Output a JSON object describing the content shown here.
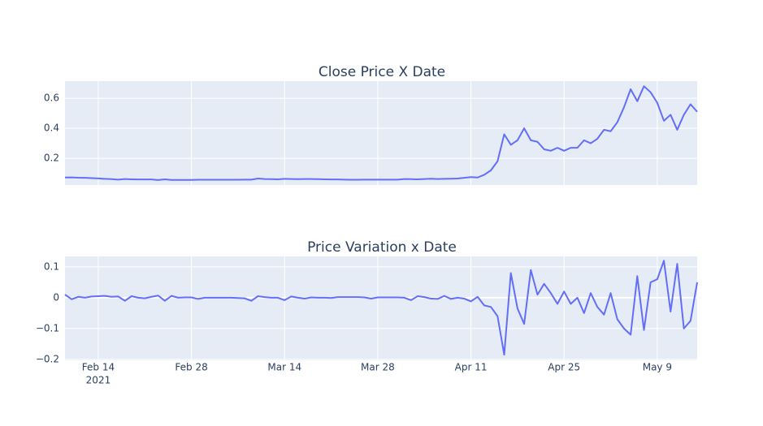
{
  "chart_data": [
    {
      "type": "line",
      "title": "Close Price X Date",
      "color": "#636efa",
      "grid": true,
      "xlim": [
        "2021-02-09",
        "2021-05-15"
      ],
      "xticks": [
        "2021-02-14",
        "2021-02-28",
        "2021-03-14",
        "2021-03-28",
        "2021-04-11",
        "2021-04-25",
        "2021-05-09"
      ],
      "ylim": [
        0.022,
        0.714
      ],
      "yticks": [
        0.2,
        0.4,
        0.6
      ],
      "x": [
        "2021-02-09",
        "2021-02-10",
        "2021-02-11",
        "2021-02-12",
        "2021-02-13",
        "2021-02-14",
        "2021-02-15",
        "2021-02-16",
        "2021-02-17",
        "2021-02-18",
        "2021-02-19",
        "2021-02-20",
        "2021-02-21",
        "2021-02-22",
        "2021-02-23",
        "2021-02-24",
        "2021-02-25",
        "2021-02-26",
        "2021-02-27",
        "2021-02-28",
        "2021-03-01",
        "2021-03-02",
        "2021-03-03",
        "2021-03-04",
        "2021-03-05",
        "2021-03-06",
        "2021-03-07",
        "2021-03-08",
        "2021-03-09",
        "2021-03-10",
        "2021-03-11",
        "2021-03-12",
        "2021-03-13",
        "2021-03-14",
        "2021-03-15",
        "2021-03-16",
        "2021-03-17",
        "2021-03-18",
        "2021-03-19",
        "2021-03-20",
        "2021-03-21",
        "2021-03-22",
        "2021-03-23",
        "2021-03-24",
        "2021-03-25",
        "2021-03-26",
        "2021-03-27",
        "2021-03-28",
        "2021-03-29",
        "2021-03-30",
        "2021-03-31",
        "2021-04-01",
        "2021-04-02",
        "2021-04-03",
        "2021-04-04",
        "2021-04-05",
        "2021-04-06",
        "2021-04-07",
        "2021-04-08",
        "2021-04-09",
        "2021-04-10",
        "2021-04-11",
        "2021-04-12",
        "2021-04-13",
        "2021-04-14",
        "2021-04-15",
        "2021-04-16",
        "2021-04-17",
        "2021-04-18",
        "2021-04-19",
        "2021-04-20",
        "2021-04-21",
        "2021-04-22",
        "2021-04-23",
        "2021-04-24",
        "2021-04-25",
        "2021-04-26",
        "2021-04-27",
        "2021-04-28",
        "2021-04-29",
        "2021-04-30",
        "2021-05-01",
        "2021-05-02",
        "2021-05-03",
        "2021-05-04",
        "2021-05-05",
        "2021-05-06",
        "2021-05-07",
        "2021-05-08",
        "2021-05-09",
        "2021-05-10",
        "2021-05-11",
        "2021-05-12",
        "2021-05-13",
        "2021-05-14",
        "2021-05-15"
      ],
      "values": [
        0.072,
        0.073,
        0.071,
        0.07,
        0.068,
        0.066,
        0.063,
        0.061,
        0.058,
        0.062,
        0.06,
        0.059,
        0.059,
        0.059,
        0.055,
        0.06,
        0.056,
        0.056,
        0.056,
        0.056,
        0.057,
        0.057,
        0.057,
        0.057,
        0.057,
        0.057,
        0.057,
        0.058,
        0.058,
        0.065,
        0.062,
        0.061,
        0.06,
        0.063,
        0.062,
        0.061,
        0.062,
        0.062,
        0.061,
        0.06,
        0.059,
        0.059,
        0.058,
        0.057,
        0.057,
        0.058,
        0.058,
        0.058,
        0.058,
        0.058,
        0.058,
        0.062,
        0.061,
        0.06,
        0.062,
        0.064,
        0.062,
        0.063,
        0.064,
        0.065,
        0.07,
        0.075,
        0.072,
        0.09,
        0.12,
        0.18,
        0.36,
        0.29,
        0.32,
        0.4,
        0.32,
        0.31,
        0.26,
        0.25,
        0.27,
        0.25,
        0.27,
        0.27,
        0.32,
        0.3,
        0.33,
        0.39,
        0.38,
        0.44,
        0.54,
        0.66,
        0.58,
        0.68,
        0.64,
        0.57,
        0.45,
        0.49,
        0.39,
        0.49,
        0.56,
        0.51
      ]
    },
    {
      "type": "line",
      "title": "Price Variation x Date",
      "color": "#636efa",
      "grid": true,
      "xlim": [
        "2021-02-09",
        "2021-05-15"
      ],
      "xticks": [
        {
          "value": "2021-02-14",
          "label": "Feb 14",
          "sublabel": "2021"
        },
        {
          "value": "2021-02-28",
          "label": "Feb 28"
        },
        {
          "value": "2021-03-14",
          "label": "Mar 14"
        },
        {
          "value": "2021-03-28",
          "label": "Mar 28"
        },
        {
          "value": "2021-04-11",
          "label": "Apr 11"
        },
        {
          "value": "2021-04-25",
          "label": "Apr 25"
        },
        {
          "value": "2021-05-09",
          "label": "May 9"
        }
      ],
      "ylim": [
        -0.203,
        0.134
      ],
      "yticks": [
        {
          "value": -0.2,
          "label": "−0.2"
        },
        {
          "value": -0.1,
          "label": "−0.1"
        },
        0,
        0.1
      ],
      "x": [
        "2021-02-09",
        "2021-02-10",
        "2021-02-11",
        "2021-02-12",
        "2021-02-13",
        "2021-02-14",
        "2021-02-15",
        "2021-02-16",
        "2021-02-17",
        "2021-02-18",
        "2021-02-19",
        "2021-02-20",
        "2021-02-21",
        "2021-02-22",
        "2021-02-23",
        "2021-02-24",
        "2021-02-25",
        "2021-02-26",
        "2021-02-27",
        "2021-02-28",
        "2021-03-01",
        "2021-03-02",
        "2021-03-03",
        "2021-03-04",
        "2021-03-05",
        "2021-03-06",
        "2021-03-07",
        "2021-03-08",
        "2021-03-09",
        "2021-03-10",
        "2021-03-11",
        "2021-03-12",
        "2021-03-13",
        "2021-03-14",
        "2021-03-15",
        "2021-03-16",
        "2021-03-17",
        "2021-03-18",
        "2021-03-19",
        "2021-03-20",
        "2021-03-21",
        "2021-03-22",
        "2021-03-23",
        "2021-03-24",
        "2021-03-25",
        "2021-03-26",
        "2021-03-27",
        "2021-03-28",
        "2021-03-29",
        "2021-03-30",
        "2021-03-31",
        "2021-04-01",
        "2021-04-02",
        "2021-04-03",
        "2021-04-04",
        "2021-04-05",
        "2021-04-06",
        "2021-04-07",
        "2021-04-08",
        "2021-04-09",
        "2021-04-10",
        "2021-04-11",
        "2021-04-12",
        "2021-04-13",
        "2021-04-14",
        "2021-04-15",
        "2021-04-16",
        "2021-04-17",
        "2021-04-18",
        "2021-04-19",
        "2021-04-20",
        "2021-04-21",
        "2021-04-22",
        "2021-04-23",
        "2021-04-24",
        "2021-04-25",
        "2021-04-26",
        "2021-04-27",
        "2021-04-28",
        "2021-04-29",
        "2021-04-30",
        "2021-05-01",
        "2021-05-02",
        "2021-05-03",
        "2021-05-04",
        "2021-05-05",
        "2021-05-06",
        "2021-05-07",
        "2021-05-08",
        "2021-05-09",
        "2021-05-10",
        "2021-05-11",
        "2021-05-12",
        "2021-05-13",
        "2021-05-14",
        "2021-05-15"
      ],
      "values": [
        0.01,
        -0.005,
        0.003,
        0,
        0.004,
        0.005,
        0.006,
        0.003,
        0.004,
        -0.01,
        0.005,
        0,
        -0.002,
        0.003,
        0.007,
        -0.01,
        0.006,
        0,
        0.001,
        0.001,
        -0.004,
        0,
        0,
        0,
        0,
        0,
        -0.001,
        -0.002,
        -0.01,
        0.005,
        0.002,
        0,
        0,
        -0.008,
        0.004,
        0,
        -0.003,
        0.001,
        0,
        0,
        -0.001,
        0.002,
        0.002,
        0.002,
        0.002,
        0.001,
        -0.003,
        0.001,
        0.001,
        0.001,
        0.001,
        0,
        -0.008,
        0.005,
        0.002,
        -0.003,
        -0.004,
        0.006,
        -0.004,
        0,
        -0.003,
        -0.012,
        0.003,
        -0.025,
        -0.03,
        -0.06,
        -0.185,
        0.08,
        -0.035,
        -0.085,
        0.09,
        0.01,
        0.045,
        0.015,
        -0.02,
        0.02,
        -0.02,
        0,
        -0.05,
        0.015,
        -0.03,
        -0.055,
        0.015,
        -0.07,
        -0.1,
        -0.12,
        0.07,
        -0.105,
        0.05,
        0.06,
        0.12,
        -0.045,
        0.11,
        -0.1,
        -0.075,
        0.05
      ]
    }
  ]
}
